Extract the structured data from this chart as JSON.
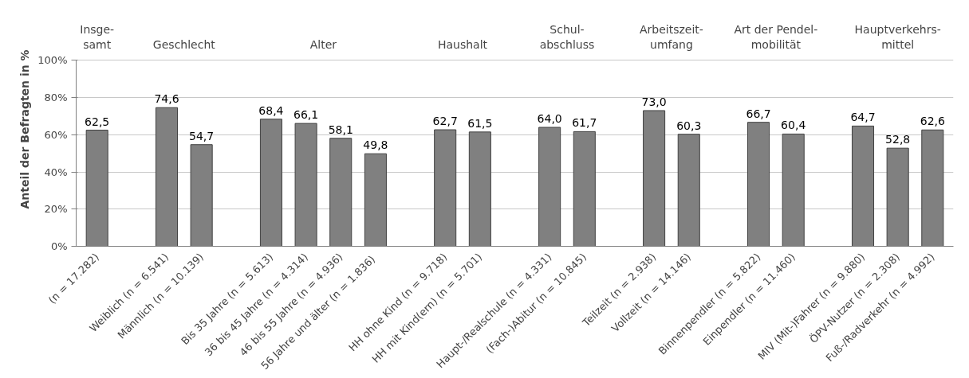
{
  "chart_data": {
    "type": "bar",
    "ylabel": "Anteil der Befragten  in %",
    "categories": [
      "(n = 17.282)",
      null,
      "Weiblich (n = 6.541)",
      "Männlich (n = 10.139)",
      null,
      "Bis 35 Jahre (n = 5.613)",
      "36 bis 45 Jahre (n = 4.314)",
      "46 bis 55 Jahre (n = 4.936)",
      "56 Jahre und älter  (n = 1.836)",
      null,
      "HH ohne Kind (n = 9.718)",
      "HH mit Kind(ern) (n = 5.701)",
      null,
      "Haupt-/Realschule (n = 4.331)",
      "(Fach-)Abitur (n = 10.845)",
      null,
      "Teilzeit (n = 2.938)",
      "Vollzeit (n = 14.146)",
      null,
      "Binnenpendler (n = 5.822)",
      "Einpendler (n = 11.460)",
      null,
      "MIV (Mit-)Fahrer (n = 9.880)",
      "ÖPV-Nutzer (n = 2.308)",
      "Fuß-/Radverkehr (n = 4.992)"
    ],
    "values": [
      62.5,
      null,
      74.6,
      54.7,
      null,
      68.4,
      66.1,
      58.1,
      49.8,
      null,
      62.7,
      61.5,
      null,
      64.0,
      61.7,
      null,
      73.0,
      60.3,
      null,
      66.7,
      60.4,
      null,
      64.7,
      52.8,
      62.6
    ],
    "value_labels": [
      "62,5",
      null,
      "74,6",
      "54,7",
      null,
      "68,4",
      "66,1",
      "58,1",
      "49,8",
      null,
      "62,7",
      "61,5",
      null,
      "64,0",
      "61,7",
      null,
      "73,0",
      "60,3",
      null,
      "66,7",
      "60,4",
      null,
      "64,7",
      "52,8",
      "62,6"
    ],
    "color": "#808080",
    "annotations": [
      "Insge-\nsamt",
      "Geschlecht",
      "Alter",
      "Haushalt",
      "Schul-\nabschluss",
      "Arbeitszeit-\numfang",
      "Art der Pendel-\nmobilität",
      "Hauptverkehrs-\nmittel"
    ],
    "ylim": [
      0,
      100
    ],
    "yticks": [
      {
        "value": 0,
        "label": "0%"
      },
      {
        "value": 20,
        "label": "20%"
      },
      {
        "value": 40,
        "label": "40%"
      },
      {
        "value": 60,
        "label": "60%"
      },
      {
        "value": 80,
        "label": "80%"
      },
      {
        "value": 100,
        "label": "100%"
      }
    ],
    "grid": "y"
  }
}
